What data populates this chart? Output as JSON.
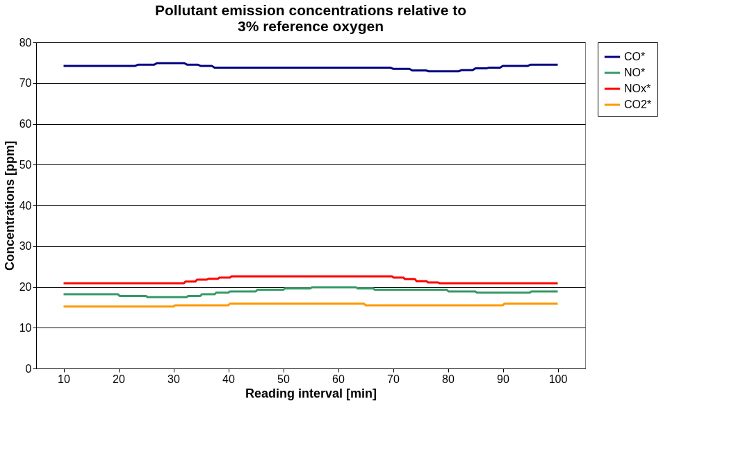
{
  "chart_data": {
    "type": "line",
    "title": "Pollutant emission concentrations relative to 3% reference oxygen",
    "xlabel": "Reading interval [min]",
    "ylabel": "Concentrations [ppm]",
    "xlim": [
      5,
      105
    ],
    "xticks": [
      10,
      20,
      30,
      40,
      50,
      60,
      70,
      80,
      90,
      100
    ],
    "ylim": [
      0,
      80
    ],
    "yticks": [
      0,
      10,
      20,
      30,
      40,
      50,
      60,
      70,
      80
    ],
    "grid": "y",
    "legend": "right",
    "marker": "none",
    "line_style": "solid",
    "series": [
      {
        "name": "CO*",
        "color": "#000080",
        "x": [
          10,
          23,
          23.5,
          26.5,
          27,
          32,
          32.5,
          34.5,
          35,
          37,
          37.5,
          69.5,
          70,
          73,
          73.5,
          76,
          76.5,
          82,
          82.5,
          84.5,
          85,
          87,
          87.5,
          89.5,
          90,
          94.5,
          95,
          100
        ],
        "values": [
          74.2,
          74.2,
          74.5,
          74.5,
          74.9,
          74.9,
          74.5,
          74.5,
          74.2,
          74.2,
          73.8,
          73.8,
          73.5,
          73.5,
          73.1,
          73.1,
          72.9,
          72.9,
          73.2,
          73.2,
          73.6,
          73.6,
          73.8,
          73.8,
          74.2,
          74.2,
          74.5,
          74.5
        ]
      },
      {
        "name": "NO*",
        "color": "#339966",
        "x": [
          10,
          19.9,
          20.2,
          25,
          25.3,
          32.4,
          32.7,
          34.9,
          35.2,
          37.5,
          37.8,
          40,
          40.3,
          45,
          45.3,
          50,
          50.3,
          54.9,
          55.2,
          63.3,
          63.6,
          66.4,
          66.7,
          79.8,
          80.1,
          85,
          85.3,
          94.9,
          95.2,
          100
        ],
        "values": [
          18.2,
          18.2,
          17.8,
          17.8,
          17.5,
          17.5,
          17.8,
          17.8,
          18.2,
          18.2,
          18.6,
          18.6,
          18.9,
          18.9,
          19.3,
          19.3,
          19.6,
          19.6,
          19.9,
          19.9,
          19.6,
          19.6,
          19.3,
          19.3,
          18.9,
          18.9,
          18.6,
          18.6,
          18.9,
          18.9
        ]
      },
      {
        "name": "NOx*",
        "color": "#ff0000",
        "x": [
          10,
          31.9,
          32.2,
          34,
          34.3,
          36.1,
          36.4,
          38.1,
          38.4,
          40.3,
          40.6,
          69.8,
          70.1,
          71.9,
          72.2,
          74,
          74.3,
          76.1,
          76.4,
          78.2,
          78.5,
          100
        ],
        "values": [
          20.9,
          20.9,
          21.3,
          21.3,
          21.8,
          21.8,
          22.0,
          22.0,
          22.3,
          22.3,
          22.6,
          22.6,
          22.3,
          22.3,
          21.9,
          21.9,
          21.4,
          21.4,
          21.1,
          21.1,
          20.9,
          20.9
        ]
      },
      {
        "name": "CO2*",
        "color": "#ff9900",
        "x": [
          10,
          30,
          30.3,
          40,
          40.3,
          64.7,
          65,
          90,
          90.3,
          100
        ],
        "values": [
          15.2,
          15.2,
          15.5,
          15.5,
          15.9,
          15.9,
          15.5,
          15.5,
          15.9,
          15.9
        ]
      }
    ]
  }
}
